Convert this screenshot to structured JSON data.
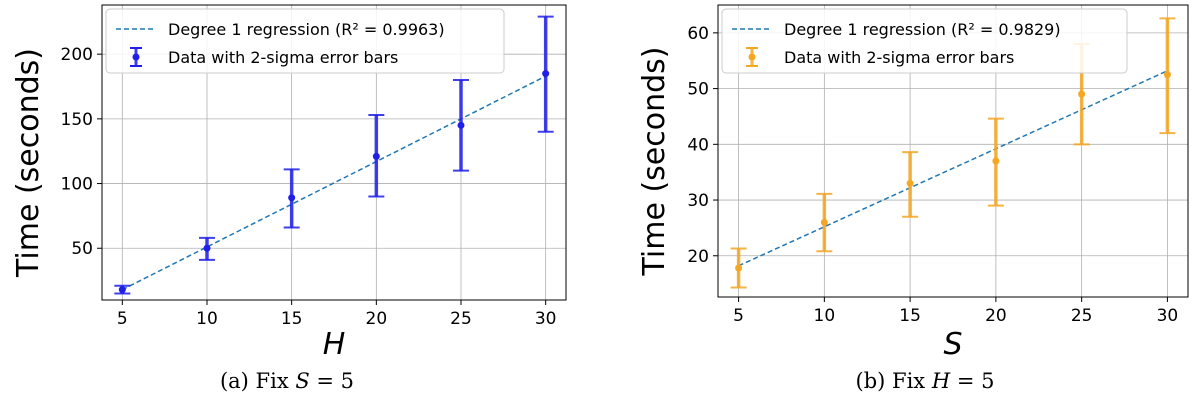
{
  "chart_data": [
    {
      "type": "scatter",
      "caption": "(a) Fix ",
      "caption_var": "S",
      "caption_rest": " = 5",
      "xlabel": "H",
      "ylabel": "Time (seconds)",
      "xlim": [
        3.8,
        31.2
      ],
      "ylim": [
        10,
        238
      ],
      "xticks": [
        5,
        10,
        15,
        20,
        25,
        30
      ],
      "yticks": [
        50,
        100,
        150,
        200
      ],
      "grid": true,
      "legend_position": "top-left",
      "color": "#1f1fe8",
      "series": [
        {
          "name": "Degree 1 regression (R² = 0.9963)",
          "kind": "line",
          "x": [
            5,
            30
          ],
          "y": [
            18,
            183
          ]
        },
        {
          "name": "Data with 2-sigma error bars",
          "kind": "errorbar",
          "x": [
            5,
            10,
            15,
            20,
            25,
            30
          ],
          "y": [
            18,
            50,
            89,
            121,
            145,
            185
          ],
          "lower": [
            15,
            41,
            66,
            90,
            110,
            140
          ],
          "upper": [
            21,
            58,
            111,
            153,
            180,
            229
          ]
        }
      ]
    },
    {
      "type": "scatter",
      "caption": "(b) Fix ",
      "caption_var": "H",
      "caption_rest": " = 5",
      "xlabel": "S",
      "ylabel": "Time (seconds)",
      "xlim": [
        3.8,
        31.2
      ],
      "ylim": [
        12.6,
        65
      ],
      "xticks": [
        5,
        10,
        15,
        20,
        25,
        30
      ],
      "yticks": [
        20,
        30,
        40,
        50,
        60
      ],
      "grid": true,
      "legend_position": "top-left",
      "color": "#f5a623",
      "series": [
        {
          "name": "Degree 1 regression (R² = 0.9829)",
          "kind": "line",
          "x": [
            5,
            30
          ],
          "y": [
            18.2,
            53.2
          ]
        },
        {
          "name": "Data with 2-sigma error bars",
          "kind": "errorbar",
          "x": [
            5,
            10,
            15,
            20,
            25,
            30
          ],
          "y": [
            17.8,
            26,
            33,
            37,
            49,
            52.5
          ],
          "lower": [
            14.3,
            20.8,
            27,
            29,
            40,
            42
          ],
          "upper": [
            21.3,
            31.1,
            38.6,
            44.6,
            58,
            62.6
          ]
        }
      ]
    }
  ],
  "colors": {
    "regression": "#1f77b4",
    "grid": "#b0b0b0"
  }
}
